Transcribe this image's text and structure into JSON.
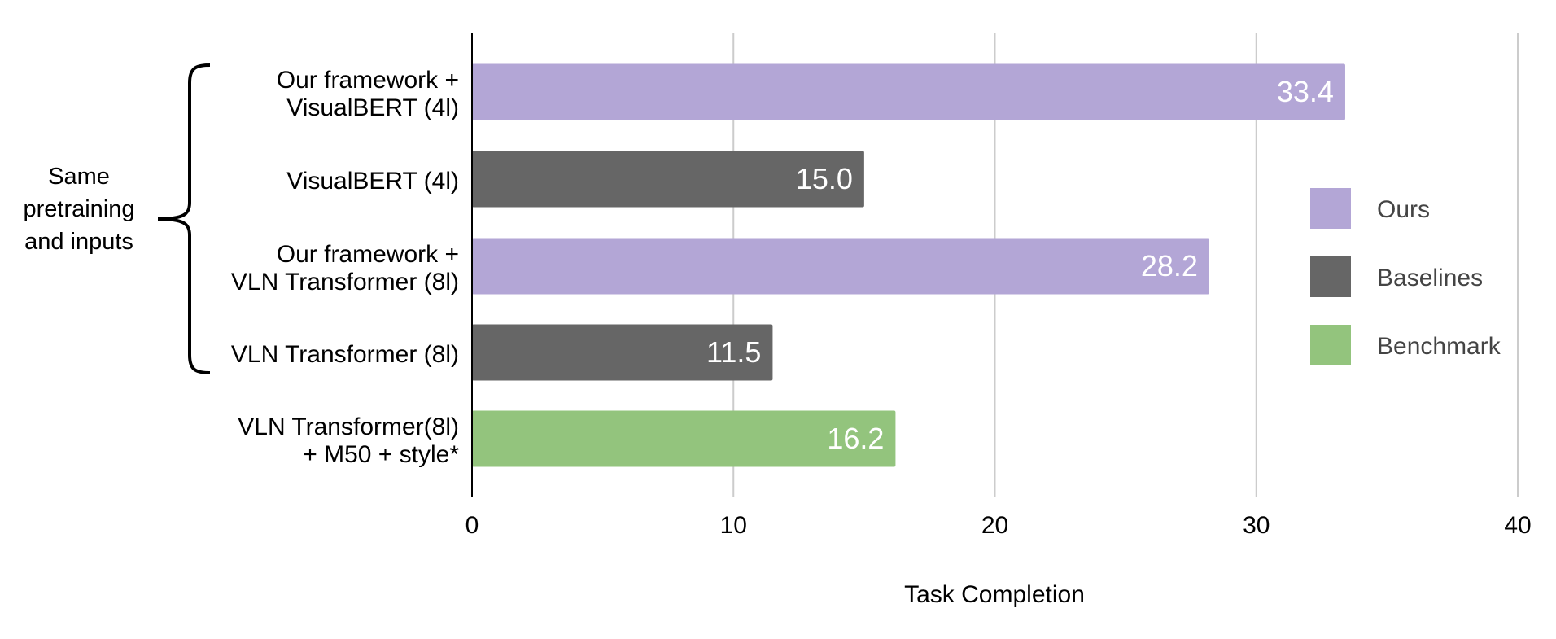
{
  "colors": {
    "ours": "#b3a6d6",
    "baselines": "#666666",
    "benchmark": "#93c47d",
    "grid": "#cccccc",
    "axis": "#000000",
    "text": "#000000",
    "legend_text": "#444444",
    "value_label": "#ffffff"
  },
  "bracket_label": [
    "Same",
    "pretraining",
    "and inputs"
  ],
  "chart_data": {
    "type": "bar",
    "orientation": "horizontal",
    "title": "",
    "xlabel": "Task Completion",
    "ylabel": "",
    "xlim": [
      0,
      40
    ],
    "xticks": [
      0,
      10,
      20,
      30,
      40
    ],
    "grid": "vertical",
    "legend_position": "right",
    "legend": [
      {
        "name": "Ours",
        "color_key": "ours"
      },
      {
        "name": "Baselines",
        "color_key": "baselines"
      },
      {
        "name": "Benchmark",
        "color_key": "benchmark"
      }
    ],
    "bars": [
      {
        "label": [
          "Our framework +",
          "VisualBERT (4l)"
        ],
        "value": 33.4,
        "value_label": "33.4",
        "group": "ours"
      },
      {
        "label": [
          "VisualBERT (4l)"
        ],
        "value": 15.0,
        "value_label": "15.0",
        "group": "baselines"
      },
      {
        "label": [
          "Our framework +",
          "VLN Transformer (8l)"
        ],
        "value": 28.2,
        "value_label": "28.2",
        "group": "ours"
      },
      {
        "label": [
          "VLN Transformer (8l)"
        ],
        "value": 11.5,
        "value_label": "11.5",
        "group": "baselines"
      },
      {
        "label": [
          "VLN Transformer(8l)",
          "+ M50 + style*"
        ],
        "value": 16.2,
        "value_label": "16.2",
        "group": "benchmark"
      }
    ]
  }
}
